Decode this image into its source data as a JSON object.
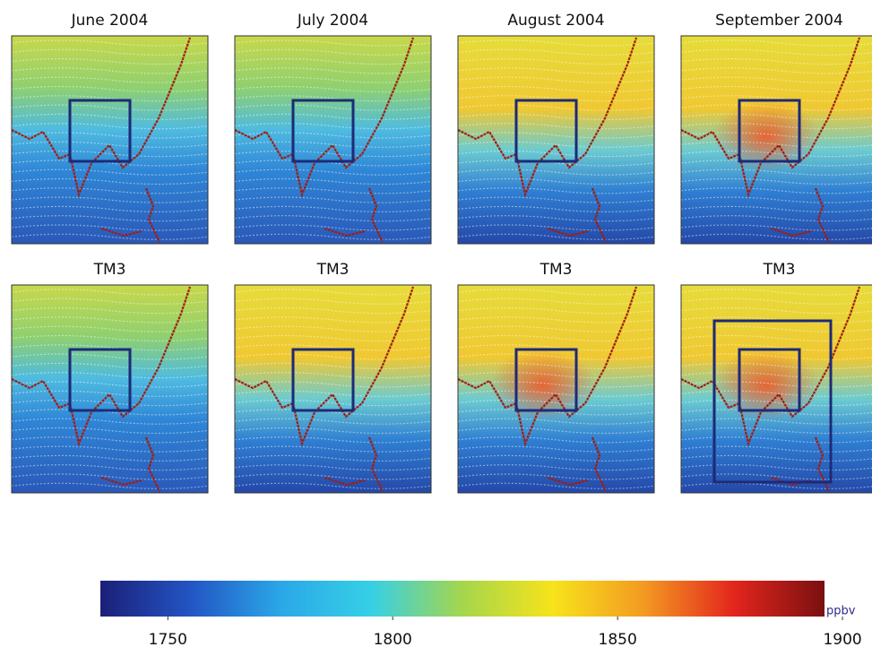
{
  "chart_data": {
    "type": "map",
    "panels": [
      {
        "title": "June 2004"
      },
      {
        "title": "July 2004"
      },
      {
        "title": "August 2004"
      },
      {
        "title": "September 2004"
      },
      {
        "title": "TM3"
      },
      {
        "title": "TM3"
      },
      {
        "title": "TM3"
      },
      {
        "title": "TM3"
      }
    ],
    "colorbar": {
      "unit": "ppbv",
      "lim": [
        1735,
        1896
      ],
      "ticks": [
        1750,
        1800,
        1850,
        1900
      ],
      "colors": [
        "#1b1f78",
        "#2355c4",
        "#2aa8e8",
        "#36d0e6",
        "#a5d64c",
        "#f7e31b",
        "#f39a22",
        "#e3261d",
        "#7a1010"
      ]
    }
  }
}
